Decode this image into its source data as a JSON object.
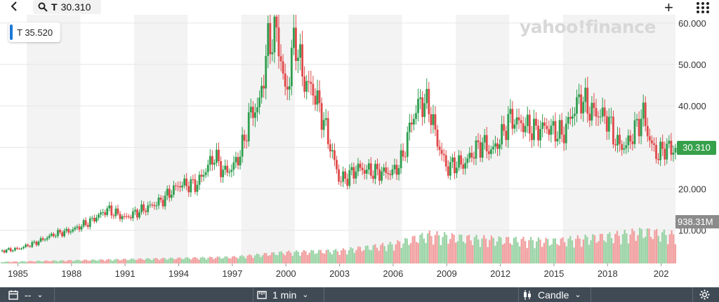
{
  "toolbar": {
    "ticker": "T",
    "price": "30.310",
    "back_icon": "chevron-left-icon",
    "search_icon": "search-icon",
    "add_icon": "plus-icon",
    "menu_icon": "grid-icon"
  },
  "legend": {
    "label": "T 35.520",
    "color": "#1e78d6"
  },
  "watermark": "yahoo!finance",
  "price_tag": {
    "label": "30.310",
    "color": "#36a04a"
  },
  "volume_tag": {
    "label": "938.31M",
    "color": "#8b8b8b"
  },
  "bottom_bar": {
    "range_label": "--",
    "interval_label": "1 min",
    "chart_type_label": "Candle",
    "calendar_icon": "calendar-icon",
    "ruler_icon": "ruler-icon",
    "candle_icon": "candlestick-icon",
    "settings_icon": "gear-icon"
  },
  "chart_data": {
    "type": "candlestick",
    "y_ticks": [
      "60.000",
      "50.000",
      "40.000",
      "30.000",
      "20.000",
      "10.000"
    ],
    "x_ticks": [
      "1985",
      "1988",
      "1991",
      "1994",
      "1997",
      "2000",
      "2003",
      "2006",
      "2009",
      "2012",
      "2015",
      "2018",
      "202"
    ],
    "ylim": [
      2,
      62
    ],
    "xlim": [
      1984,
      2021.8
    ],
    "up_color": "#2e9e4f",
    "down_color": "#e04848",
    "price_points": [
      [
        1984.0,
        5
      ],
      [
        1985.0,
        5.5
      ],
      [
        1986.0,
        7
      ],
      [
        1987.0,
        9
      ],
      [
        1988.0,
        10
      ],
      [
        1989.0,
        12
      ],
      [
        1990.0,
        15
      ],
      [
        1991.0,
        13
      ],
      [
        1992.0,
        15
      ],
      [
        1993.0,
        17
      ],
      [
        1994.0,
        21
      ],
      [
        1995.0,
        21
      ],
      [
        1996.0,
        28
      ],
      [
        1996.5,
        24
      ],
      [
        1997.0,
        25
      ],
      [
        1997.5,
        29
      ],
      [
        1998.0,
        38
      ],
      [
        1998.5,
        40
      ],
      [
        1999.0,
        55
      ],
      [
        1999.5,
        58
      ],
      [
        2000.0,
        42
      ],
      [
        2000.5,
        57
      ],
      [
        2001.0,
        46
      ],
      [
        2001.5,
        44
      ],
      [
        2002.0,
        38
      ],
      [
        2002.5,
        30
      ],
      [
        2003.0,
        22
      ],
      [
        2003.5,
        23
      ],
      [
        2004.0,
        25
      ],
      [
        2005.0,
        24
      ],
      [
        2006.0,
        24
      ],
      [
        2006.5,
        27
      ],
      [
        2007.0,
        36
      ],
      [
        2007.5,
        41
      ],
      [
        2008.0,
        40
      ],
      [
        2008.5,
        31
      ],
      [
        2009.0,
        25
      ],
      [
        2009.5,
        26
      ],
      [
        2010.0,
        26
      ],
      [
        2010.5,
        29
      ],
      [
        2011.0,
        31
      ],
      [
        2011.5,
        29
      ],
      [
        2012.0,
        32
      ],
      [
        2012.5,
        37
      ],
      [
        2013.0,
        36
      ],
      [
        2013.5,
        35
      ],
      [
        2014.0,
        34
      ],
      [
        2014.5,
        35
      ],
      [
        2015.0,
        34
      ],
      [
        2015.5,
        33
      ],
      [
        2016.0,
        38
      ],
      [
        2016.5,
        42
      ],
      [
        2017.0,
        39
      ],
      [
        2017.5,
        38
      ],
      [
        2018.0,
        37
      ],
      [
        2018.5,
        31
      ],
      [
        2019.0,
        30
      ],
      [
        2019.5,
        34
      ],
      [
        2020.0,
        38
      ],
      [
        2020.4,
        31
      ],
      [
        2020.8,
        28
      ],
      [
        2021.2,
        30
      ],
      [
        2021.6,
        29.5
      ]
    ],
    "volume_points": [
      [
        1984,
        0.5
      ],
      [
        1990,
        1.2
      ],
      [
        1997,
        2
      ],
      [
        2000,
        3.5
      ],
      [
        2003,
        4
      ],
      [
        2006,
        6
      ],
      [
        2008,
        9
      ],
      [
        2010,
        8
      ],
      [
        2012,
        7.5
      ],
      [
        2015,
        7
      ],
      [
        2018,
        8.5
      ],
      [
        2020,
        10
      ],
      [
        2021.6,
        9
      ]
    ]
  }
}
